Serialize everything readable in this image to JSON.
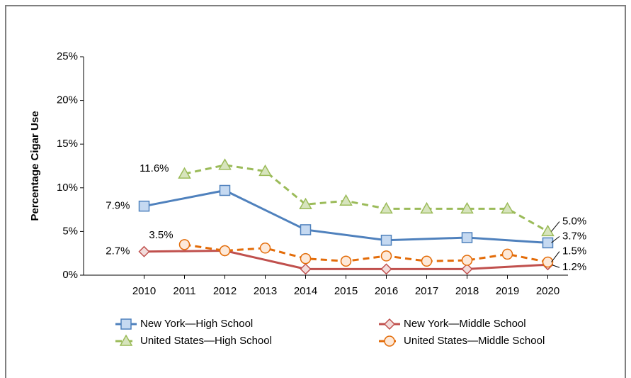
{
  "chart_data": {
    "type": "line",
    "y_label": "Percentage Cigar Use",
    "xlim": [
      2008.5,
      2020.5
    ],
    "xticks": [
      2010,
      2011,
      2012,
      2013,
      2014,
      2015,
      2016,
      2017,
      2018,
      2019,
      2020
    ],
    "ylim": [
      0,
      25
    ],
    "yticks": [
      {
        "value": 0,
        "label": "0%"
      },
      {
        "value": 5,
        "label": "5%"
      },
      {
        "value": 10,
        "label": "10%"
      },
      {
        "value": 15,
        "label": "15%"
      },
      {
        "value": 20,
        "label": "20%"
      },
      {
        "value": 25,
        "label": "25%"
      }
    ],
    "series": [
      {
        "name": "New York—High School",
        "color": "#4f81bd",
        "marker": "square",
        "marker_fill": "#c5d9f1",
        "dashed": false,
        "x": [
          2010,
          2012,
          2014,
          2016,
          2018,
          2020
        ],
        "values": [
          7.9,
          9.7,
          5.2,
          4.0,
          4.3,
          3.7
        ],
        "value_labels": [
          "7.9%",
          null,
          null,
          null,
          null,
          "3.7%"
        ]
      },
      {
        "name": "New York—Middle School",
        "color": "#c0504d",
        "marker": "diamond",
        "marker_fill": "#f2dcdb",
        "dashed": false,
        "x": [
          2010,
          2012,
          2014,
          2016,
          2018,
          2020
        ],
        "values": [
          2.7,
          2.8,
          0.7,
          0.7,
          0.7,
          1.2
        ],
        "value_labels": [
          "2.7%",
          null,
          null,
          null,
          null,
          "1.2%"
        ]
      },
      {
        "name": "United States—High School",
        "color": "#9bbb59",
        "marker": "triangle",
        "marker_fill": "#d7e4bd",
        "dashed": true,
        "x": [
          2011,
          2012,
          2013,
          2014,
          2015,
          2016,
          2017,
          2018,
          2019,
          2020
        ],
        "values": [
          11.6,
          12.6,
          11.9,
          8.1,
          8.5,
          7.6,
          7.6,
          7.6,
          7.6,
          5.0
        ],
        "value_labels": [
          "11.6%",
          null,
          null,
          null,
          null,
          null,
          null,
          null,
          null,
          "5.0%"
        ]
      },
      {
        "name": "United States—Middle School",
        "color": "#e36c09",
        "marker": "circle",
        "marker_fill": "#fde9d9",
        "dashed": true,
        "x": [
          2011,
          2012,
          2013,
          2014,
          2015,
          2016,
          2017,
          2018,
          2019,
          2020
        ],
        "values": [
          3.5,
          2.8,
          3.1,
          1.9,
          1.6,
          2.2,
          1.6,
          1.7,
          2.4,
          1.5
        ],
        "value_labels": [
          "3.5%",
          null,
          null,
          null,
          null,
          null,
          null,
          null,
          null,
          "1.5%"
        ]
      }
    ]
  }
}
